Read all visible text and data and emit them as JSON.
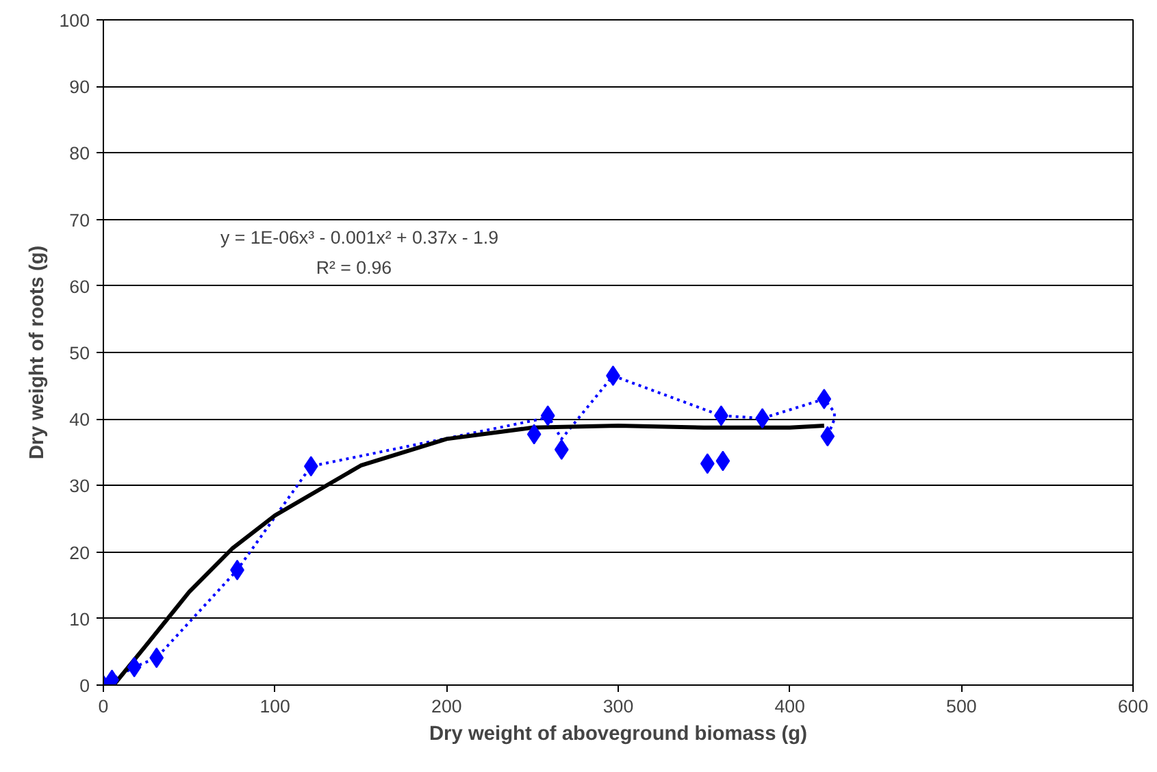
{
  "chart_data": {
    "type": "scatter",
    "xlabel": "Dry weight of aboveground biomass (g)",
    "ylabel": "Dry weight of roots (g)",
    "series": [
      {
        "color": "#0000ff",
        "marker": "diamond",
        "x": [
          0,
          5,
          18,
          31,
          78,
          121,
          251,
          259,
          267,
          297,
          352,
          360,
          361,
          384,
          420,
          422
        ],
        "values": [
          0,
          0.8,
          2.7,
          4.1,
          17.3,
          32.9,
          37.7,
          40.5,
          35.4,
          46.5,
          33.3,
          40.5,
          33.7,
          40.1,
          43.0,
          37.4
        ]
      },
      {
        "type": "line",
        "color": "#0000ff",
        "line_style": "dotted",
        "x": [
          0,
          5,
          18,
          31,
          78,
          121,
          255,
          259,
          267,
          297,
          360,
          384,
          420,
          426,
          426,
          422
        ],
        "values": [
          0,
          0.8,
          2.7,
          4.1,
          17.3,
          32.9,
          40,
          40.5,
          37,
          46.5,
          40.5,
          40.1,
          43,
          41,
          40,
          37.4
        ]
      },
      {
        "type": "line",
        "color": "#000000",
        "line_style": "solid",
        "x": [
          6,
          25,
          50,
          75,
          100,
          150,
          200,
          250,
          300,
          350,
          400,
          420
        ],
        "values": [
          0,
          6,
          14,
          20.5,
          25.5,
          33,
          37,
          38.7,
          39,
          38.7,
          38.7,
          39
        ]
      }
    ],
    "xlim": [
      0,
      600
    ],
    "xticks": [
      0,
      100,
      200,
      300,
      400,
      500,
      600
    ],
    "ylim": [
      0,
      100
    ],
    "yticks": [
      0,
      10,
      20,
      30,
      40,
      50,
      60,
      70,
      80,
      90,
      100
    ],
    "grid": "y",
    "annotations": [
      "y = 1E-06x³ - 0.001x² + 0.37x - 1.9",
      "R² = 0.96"
    ]
  }
}
